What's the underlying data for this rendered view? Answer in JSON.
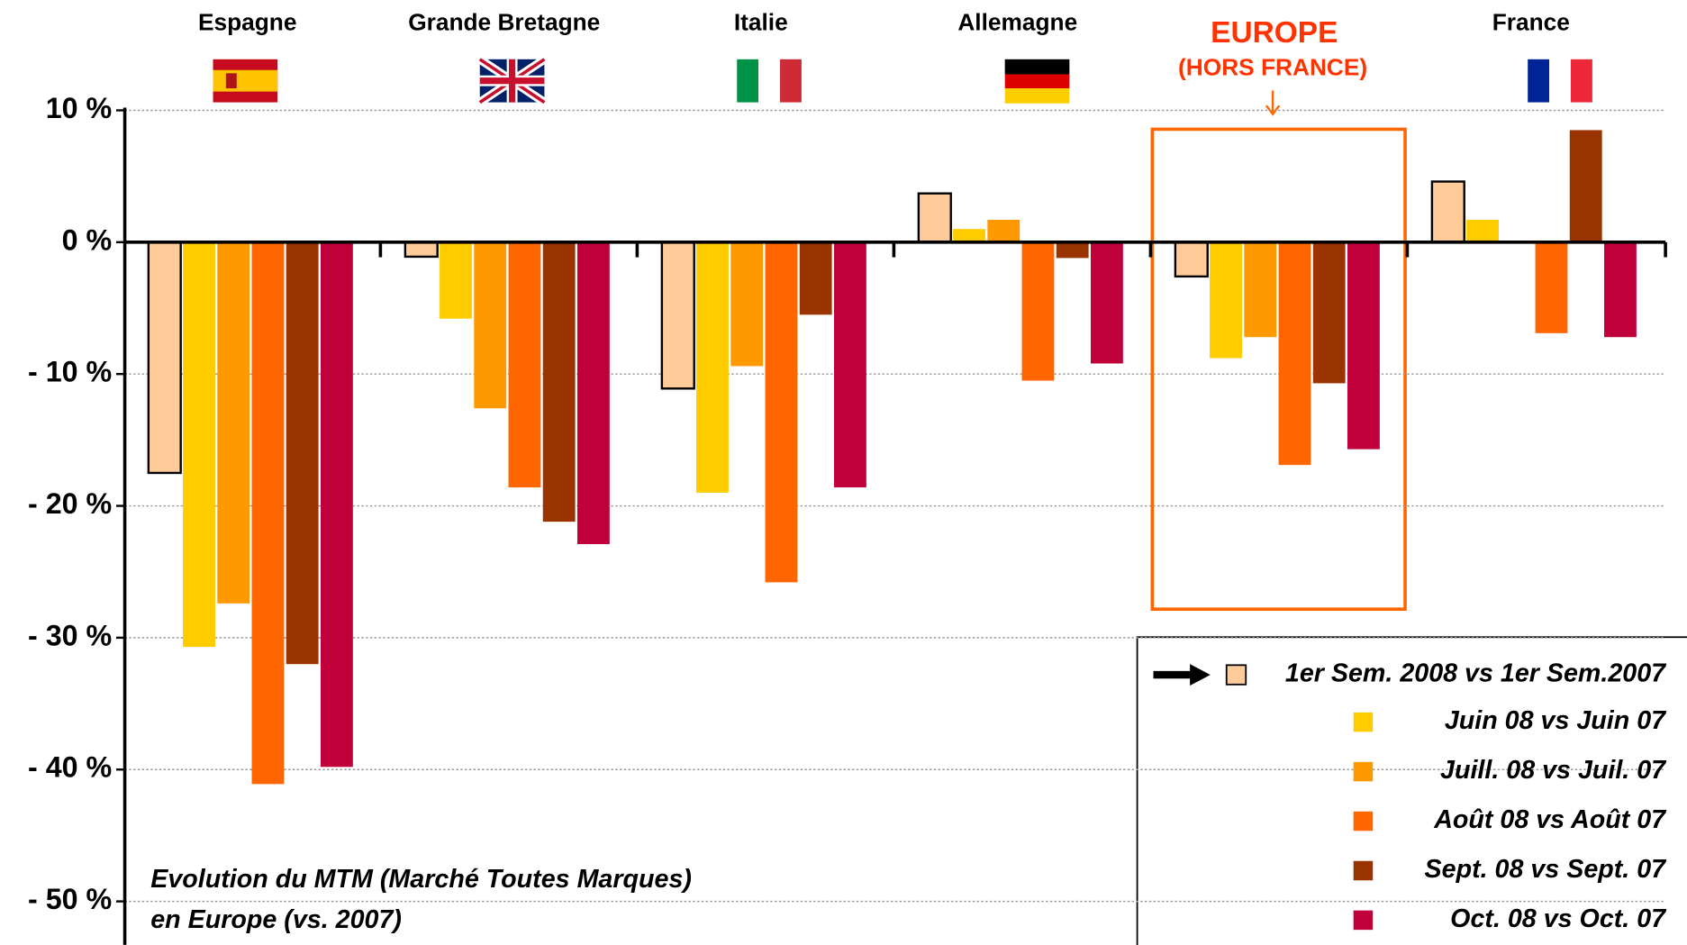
{
  "chart_data": {
    "type": "bar",
    "categories": [
      "Espagne",
      "Grande Bretagne",
      "Italie",
      "Allemagne",
      "EUROPE",
      "France"
    ],
    "highlight_subtitle": "(HORS FRANCE)",
    "series": [
      {
        "name": "1er Sem. 2008 vs 1er Sem.2007",
        "color": "#FFCC99",
        "values": [
          -17.5,
          -1.1,
          -11.1,
          3.7,
          -2.6,
          4.6
        ]
      },
      {
        "name": "Juin 08 vs Juin 07",
        "color": "#FFCC00",
        "values": [
          -30.7,
          -5.8,
          -19.0,
          1.0,
          -8.8,
          1.7
        ]
      },
      {
        "name": "Juill. 08 vs Juil. 07",
        "color": "#FF9900",
        "values": [
          -27.4,
          -12.6,
          -9.4,
          1.7,
          -7.2,
          null
        ]
      },
      {
        "name": "Août 08 vs Août 07",
        "color": "#FF6600",
        "values": [
          -41.1,
          -18.6,
          -25.8,
          -10.5,
          -16.9,
          -6.9
        ]
      },
      {
        "name": "Sept. 08 vs Sept. 07",
        "color": "#993300",
        "values": [
          -32.0,
          -21.2,
          -5.5,
          -1.2,
          -10.7,
          8.5
        ]
      },
      {
        "name": "Oct. 08 vs Oct. 07",
        "color": "#C0003A",
        "values": [
          -39.8,
          -22.9,
          -18.6,
          -9.2,
          -15.7,
          -7.2
        ]
      }
    ],
    "ylim": [
      -53.3,
      10.2
    ],
    "yticks": [
      {
        "value": 10,
        "label": "10 %"
      },
      {
        "value": 0,
        "label": "0 %"
      },
      {
        "value": -10,
        "label": "- 10 %"
      },
      {
        "value": -20,
        "label": "- 20 %"
      },
      {
        "value": -30,
        "label": "- 30 %"
      },
      {
        "value": -40,
        "label": "- 40 %"
      },
      {
        "value": -50,
        "label": "- 50 %"
      }
    ],
    "grid": true,
    "annotation": [
      "Evolution du MTM (Marché Toutes Marques)",
      "en Europe (vs. 2007)"
    ]
  }
}
